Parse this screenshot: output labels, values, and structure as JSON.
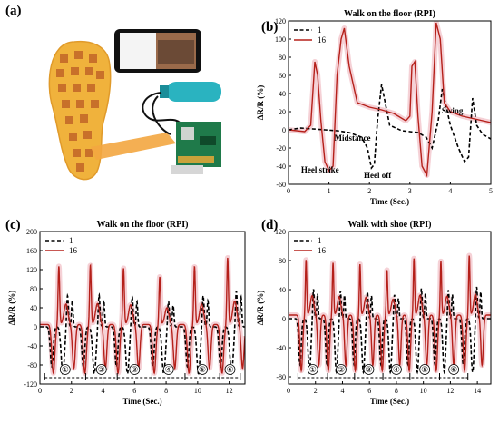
{
  "panels": {
    "a": "(a)",
    "b": "(b)",
    "c": "(c)",
    "d": "(d)"
  },
  "colors": {
    "series1": "#000000",
    "series16": "#b5201a",
    "shade": "#f2c6cc",
    "insole": "#f0b23c",
    "sensor": "#c8702a",
    "board": "#1f7a4a",
    "battery": "#2ab3c0"
  },
  "photo": {
    "icons": [
      "insole-sensor-array",
      "smartphone",
      "battery-pack",
      "raspberry-pi-board",
      "flex-cable"
    ]
  },
  "chart_data": [
    {
      "id": "b",
      "type": "line",
      "title": "Walk on the floor (RPI)",
      "xlabel": "Time (Sec.)",
      "ylabel": "ΔR/R (%)",
      "xlim": [
        0,
        5
      ],
      "ylim": [
        -60,
        120
      ],
      "xticks": [
        0,
        1,
        2,
        3,
        4,
        5
      ],
      "yticks": [
        -60,
        -40,
        -20,
        0,
        20,
        40,
        60,
        80,
        100,
        120
      ],
      "legend": "top-left",
      "series": [
        {
          "name": "1",
          "style": "dashed",
          "x": [
            0,
            0.3,
            0.6,
            0.9,
            1.2,
            1.5,
            1.8,
            1.95,
            2.05,
            2.12,
            2.2,
            2.3,
            2.5,
            2.8,
            3.0,
            3.2,
            3.4,
            3.55,
            3.7,
            3.8,
            4.0,
            4.2,
            4.35,
            4.45,
            4.55,
            4.65,
            4.8,
            5.0
          ],
          "y": [
            0,
            2,
            1,
            0,
            -1,
            -3,
            -8,
            -20,
            -42,
            -38,
            10,
            50,
            5,
            -1,
            -2,
            -3,
            -8,
            -20,
            10,
            45,
            5,
            -20,
            -35,
            -30,
            35,
            5,
            -5,
            -10
          ]
        },
        {
          "name": "16",
          "style": "solid",
          "x": [
            0,
            0.4,
            0.55,
            0.65,
            0.72,
            0.8,
            0.9,
            1.0,
            1.1,
            1.2,
            1.3,
            1.38,
            1.5,
            1.7,
            2.0,
            2.3,
            2.6,
            2.9,
            3.0,
            3.05,
            3.12,
            3.2,
            3.3,
            3.42,
            3.55,
            3.65,
            3.75,
            3.85,
            4.0,
            4.3,
            4.6,
            5.0
          ],
          "y": [
            0,
            -2,
            5,
            75,
            60,
            10,
            -35,
            -45,
            -40,
            60,
            100,
            112,
            70,
            30,
            25,
            22,
            18,
            10,
            15,
            70,
            75,
            15,
            -40,
            -50,
            20,
            118,
            100,
            30,
            20,
            15,
            12,
            8
          ]
        }
      ],
      "annotations": [
        {
          "text": "Swing",
          "x": 4.05,
          "y": 18
        },
        {
          "text": "Midstance",
          "x": 1.58,
          "y": -12
        },
        {
          "text": "Heel strike",
          "x": 0.78,
          "y": -47
        },
        {
          "text": "Heel off",
          "x": 2.2,
          "y": -53
        }
      ]
    },
    {
      "id": "c",
      "type": "line",
      "title": "Walk on the floor (RPI)",
      "xlabel": "Time (Sec.)",
      "ylabel": "ΔR/R (%)",
      "xlim": [
        0,
        13
      ],
      "ylim": [
        -120,
        200
      ],
      "xticks": [
        0,
        2,
        4,
        6,
        8,
        10,
        12
      ],
      "yticks": [
        -120,
        -80,
        -40,
        0,
        40,
        80,
        120,
        160,
        200
      ],
      "legend": "top-left",
      "cycle_labels": [
        "①",
        "②",
        "③",
        "④",
        "⑤",
        "⑥"
      ],
      "cycle_bounds": [
        0.3,
        2.9,
        4.9,
        7.1,
        9.2,
        11.4,
        12.7
      ],
      "peaks16": [
        1.2,
        3.2,
        5.3,
        7.6,
        9.8,
        11.9
      ],
      "peak_heights16": [
        122,
        125,
        118,
        100,
        122,
        140
      ],
      "series": [
        {
          "name": "1",
          "style": "dashed"
        },
        {
          "name": "16",
          "style": "solid"
        }
      ]
    },
    {
      "id": "d",
      "type": "line",
      "title": "Walk with shoe (RPI)",
      "xlabel": "Time (Sec.)",
      "ylabel": "ΔR/R (%)",
      "xlim": [
        0,
        15
      ],
      "ylim": [
        -90,
        120
      ],
      "xticks": [
        0,
        2,
        4,
        6,
        8,
        10,
        12,
        14
      ],
      "yticks": [
        -80,
        -40,
        0,
        40,
        80,
        120
      ],
      "legend": "top-left",
      "cycle_labels": [
        "①",
        "②",
        "③",
        "④",
        "⑤",
        "⑥"
      ],
      "cycle_bounds": [
        0.7,
        2.9,
        4.9,
        7.0,
        9.0,
        11.2,
        13.3
      ],
      "peaks16": [
        1.3,
        3.3,
        5.3,
        7.3,
        9.3,
        11.3,
        13.4
      ],
      "peak_heights16": [
        76,
        72,
        70,
        62,
        78,
        74,
        82
      ],
      "series": [
        {
          "name": "1",
          "style": "dashed"
        },
        {
          "name": "16",
          "style": "solid"
        }
      ]
    }
  ]
}
